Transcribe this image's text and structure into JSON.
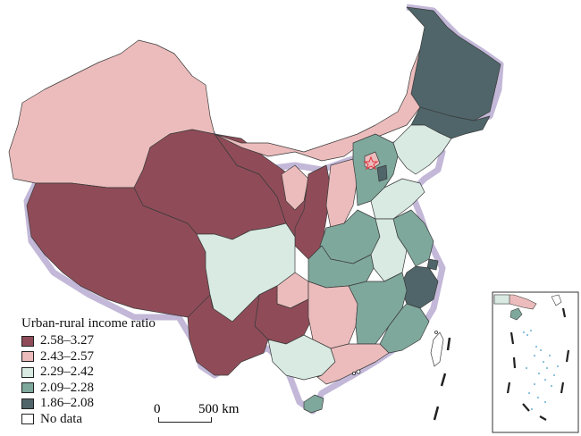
{
  "legend": {
    "title": "Urban-rural income ratio",
    "classes": [
      {
        "label": "2.58–3.27",
        "color": "#8f4c58"
      },
      {
        "label": "2.43–2.57",
        "color": "#ecbcbc"
      },
      {
        "label": "2.29–2.42",
        "color": "#d8eae2"
      },
      {
        "label": "2.09–2.28",
        "color": "#7fa89c"
      },
      {
        "label": "1.86–2.08",
        "color": "#4f6569"
      },
      {
        "label": "No data",
        "color": "#ffffff"
      }
    ]
  },
  "scale_bar": {
    "zero": "0",
    "distance_label": "500 km"
  },
  "colors": {
    "border_glow": "#c3b8d8",
    "outline": "#3a3a3a",
    "capital_star": "#e0303a"
  },
  "icons": {
    "capital": "star-icon"
  }
}
